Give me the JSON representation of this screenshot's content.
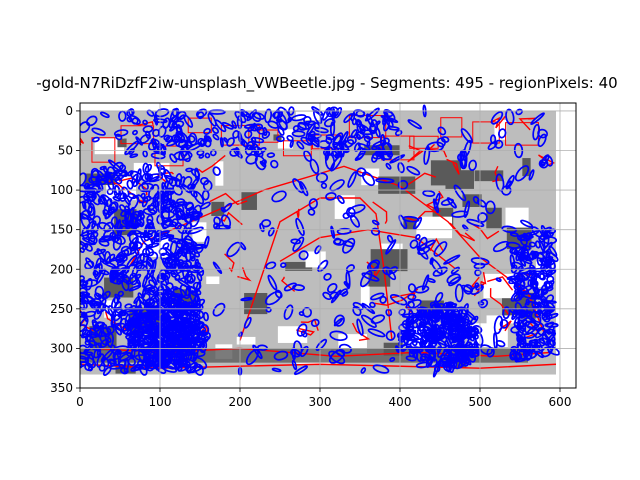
{
  "chart_data": {
    "type": "image",
    "title": "-gold-N7RiDzfF2iw-unsplash_VWBeetle.jpg - Segments: 495 - regionPixels: 40",
    "xlim": [
      0,
      620
    ],
    "ylim": [
      350,
      -10
    ],
    "x_ticks": [
      0,
      100,
      200,
      300,
      400,
      500,
      600
    ],
    "y_ticks": [
      0,
      50,
      100,
      150,
      200,
      250,
      300,
      350
    ],
    "grid": true,
    "image_extent": {
      "x": [
        0,
        595
      ],
      "y": [
        0,
        333
      ]
    },
    "colors": {
      "contour": "#0000ff",
      "boundary": "#ff0000",
      "background_light": "#bdbdbd",
      "background_dark": "#5a5a5a",
      "grid": "#b0b0b0"
    },
    "segment_count": 495
  }
}
